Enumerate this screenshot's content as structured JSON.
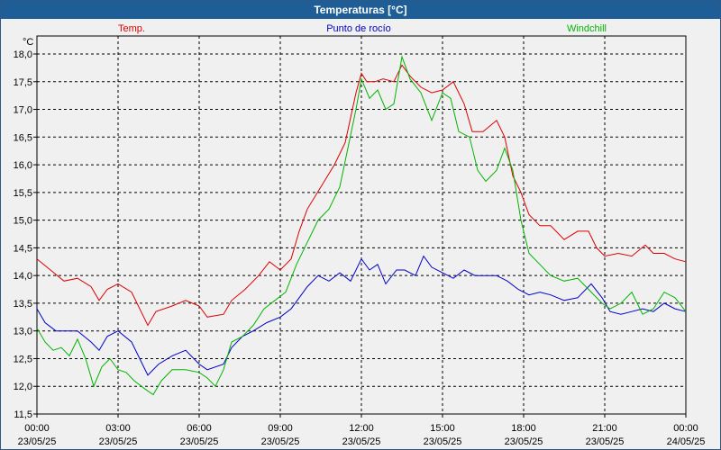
{
  "window": {
    "title": "Temperaturas [°C]"
  },
  "chart_data": {
    "type": "line",
    "title": "Temperaturas [°C]",
    "ylabel": "°C",
    "xlabel": "",
    "ylim": [
      11.5,
      18.0
    ],
    "y_ticks": [
      "18,0",
      "17,5",
      "17,0",
      "16,5",
      "16,0",
      "15,5",
      "15,0",
      "14,5",
      "14,0",
      "13,5",
      "13,0",
      "12,5",
      "12,0",
      "11,5"
    ],
    "x_ticks": [
      {
        "time": "00:00",
        "date": "23/05/25"
      },
      {
        "time": "03:00",
        "date": "23/05/25"
      },
      {
        "time": "06:00",
        "date": "23/05/25"
      },
      {
        "time": "09:00",
        "date": "23/05/25"
      },
      {
        "time": "12:00",
        "date": "23/05/25"
      },
      {
        "time": "15:00",
        "date": "23/05/25"
      },
      {
        "time": "18:00",
        "date": "23/05/25"
      },
      {
        "time": "21:00",
        "date": "23/05/25"
      },
      {
        "time": "00:00",
        "date": "24/05/25"
      }
    ],
    "grid": true,
    "series": [
      {
        "name": "Temp.",
        "color": "#dd0000",
        "points": [
          [
            0,
            14.3
          ],
          [
            0.5,
            14.1
          ],
          [
            1,
            13.9
          ],
          [
            1.5,
            13.95
          ],
          [
            2,
            13.8
          ],
          [
            2.3,
            13.55
          ],
          [
            2.6,
            13.75
          ],
          [
            3,
            13.85
          ],
          [
            3.5,
            13.7
          ],
          [
            3.9,
            13.3
          ],
          [
            4.1,
            13.1
          ],
          [
            4.4,
            13.35
          ],
          [
            5,
            13.45
          ],
          [
            5.5,
            13.55
          ],
          [
            6,
            13.45
          ],
          [
            6.3,
            13.25
          ],
          [
            6.9,
            13.3
          ],
          [
            7.2,
            13.55
          ],
          [
            7.7,
            13.75
          ],
          [
            8.2,
            14.0
          ],
          [
            8.6,
            14.25
          ],
          [
            9,
            14.1
          ],
          [
            9.4,
            14.3
          ],
          [
            9.7,
            14.8
          ],
          [
            10,
            15.2
          ],
          [
            10.5,
            15.6
          ],
          [
            11,
            16.0
          ],
          [
            11.4,
            16.4
          ],
          [
            11.8,
            17.3
          ],
          [
            12,
            17.65
          ],
          [
            12.2,
            17.5
          ],
          [
            12.5,
            17.5
          ],
          [
            12.8,
            17.55
          ],
          [
            13.2,
            17.5
          ],
          [
            13.5,
            17.8
          ],
          [
            13.8,
            17.6
          ],
          [
            14.2,
            17.4
          ],
          [
            14.6,
            17.3
          ],
          [
            15.0,
            17.35
          ],
          [
            15.4,
            17.5
          ],
          [
            15.8,
            17.1
          ],
          [
            16.1,
            16.6
          ],
          [
            16.5,
            16.6
          ],
          [
            17,
            16.8
          ],
          [
            17.3,
            16.5
          ],
          [
            17.6,
            15.8
          ],
          [
            17.9,
            15.5
          ],
          [
            18.2,
            15.1
          ],
          [
            18.6,
            14.9
          ],
          [
            19,
            14.9
          ],
          [
            19.5,
            14.65
          ],
          [
            20,
            14.8
          ],
          [
            20.4,
            14.8
          ],
          [
            20.7,
            14.5
          ],
          [
            21,
            14.35
          ],
          [
            21.5,
            14.4
          ],
          [
            22,
            14.35
          ],
          [
            22.5,
            14.55
          ],
          [
            22.8,
            14.4
          ],
          [
            23.2,
            14.4
          ],
          [
            23.6,
            14.3
          ],
          [
            24,
            14.25
          ]
        ]
      },
      {
        "name": "Punto de rocío",
        "color": "#0000c8",
        "points": [
          [
            0,
            13.4
          ],
          [
            0.3,
            13.15
          ],
          [
            0.7,
            13.0
          ],
          [
            1,
            13.0
          ],
          [
            1.5,
            13.0
          ],
          [
            2,
            12.8
          ],
          [
            2.3,
            12.65
          ],
          [
            2.6,
            12.9
          ],
          [
            3,
            13.0
          ],
          [
            3.5,
            12.8
          ],
          [
            3.9,
            12.4
          ],
          [
            4.1,
            12.2
          ],
          [
            4.5,
            12.4
          ],
          [
            5,
            12.55
          ],
          [
            5.5,
            12.65
          ],
          [
            6,
            12.4
          ],
          [
            6.3,
            12.3
          ],
          [
            6.9,
            12.4
          ],
          [
            7.2,
            12.7
          ],
          [
            7.6,
            12.9
          ],
          [
            8,
            13.0
          ],
          [
            8.5,
            13.15
          ],
          [
            9,
            13.25
          ],
          [
            9.4,
            13.4
          ],
          [
            9.7,
            13.6
          ],
          [
            10,
            13.8
          ],
          [
            10.4,
            14.0
          ],
          [
            10.8,
            13.9
          ],
          [
            11.2,
            14.05
          ],
          [
            11.6,
            13.9
          ],
          [
            12,
            14.3
          ],
          [
            12.3,
            14.1
          ],
          [
            12.6,
            14.2
          ],
          [
            12.9,
            13.85
          ],
          [
            13.3,
            14.1
          ],
          [
            13.6,
            14.1
          ],
          [
            14,
            14.0
          ],
          [
            14.3,
            14.35
          ],
          [
            14.6,
            14.15
          ],
          [
            15,
            14.05
          ],
          [
            15.4,
            13.95
          ],
          [
            15.8,
            14.1
          ],
          [
            16.2,
            14.0
          ],
          [
            16.6,
            14.0
          ],
          [
            17,
            14.0
          ],
          [
            17.4,
            13.9
          ],
          [
            17.8,
            13.75
          ],
          [
            18.2,
            13.65
          ],
          [
            18.6,
            13.7
          ],
          [
            19,
            13.65
          ],
          [
            19.5,
            13.55
          ],
          [
            20,
            13.6
          ],
          [
            20.5,
            13.85
          ],
          [
            20.9,
            13.6
          ],
          [
            21.2,
            13.35
          ],
          [
            21.6,
            13.3
          ],
          [
            22,
            13.35
          ],
          [
            22.4,
            13.4
          ],
          [
            22.8,
            13.35
          ],
          [
            23.2,
            13.5
          ],
          [
            23.6,
            13.4
          ],
          [
            24,
            13.35
          ]
        ]
      },
      {
        "name": "Windchill",
        "color": "#00b400",
        "points": [
          [
            0,
            13.05
          ],
          [
            0.3,
            12.8
          ],
          [
            0.6,
            12.65
          ],
          [
            0.9,
            12.7
          ],
          [
            1.2,
            12.55
          ],
          [
            1.5,
            12.85
          ],
          [
            1.8,
            12.5
          ],
          [
            2.1,
            12.0
          ],
          [
            2.4,
            12.35
          ],
          [
            2.7,
            12.5
          ],
          [
            3,
            12.3
          ],
          [
            3.3,
            12.25
          ],
          [
            3.6,
            12.1
          ],
          [
            4,
            11.95
          ],
          [
            4.3,
            11.85
          ],
          [
            4.6,
            12.1
          ],
          [
            5,
            12.3
          ],
          [
            5.5,
            12.3
          ],
          [
            6,
            12.25
          ],
          [
            6.3,
            12.15
          ],
          [
            6.6,
            12.0
          ],
          [
            6.9,
            12.3
          ],
          [
            7.2,
            12.8
          ],
          [
            7.6,
            12.9
          ],
          [
            8,
            13.1
          ],
          [
            8.4,
            13.4
          ],
          [
            8.8,
            13.55
          ],
          [
            9.2,
            13.7
          ],
          [
            9.6,
            14.2
          ],
          [
            10,
            14.6
          ],
          [
            10.4,
            15.0
          ],
          [
            10.8,
            15.2
          ],
          [
            11.2,
            15.6
          ],
          [
            11.5,
            16.3
          ],
          [
            11.8,
            17.0
          ],
          [
            12,
            17.55
          ],
          [
            12.3,
            17.2
          ],
          [
            12.6,
            17.35
          ],
          [
            12.9,
            17.0
          ],
          [
            13.2,
            17.1
          ],
          [
            13.5,
            17.95
          ],
          [
            13.8,
            17.55
          ],
          [
            14.2,
            17.3
          ],
          [
            14.6,
            16.8
          ],
          [
            15,
            17.3
          ],
          [
            15.3,
            17.2
          ],
          [
            15.6,
            16.6
          ],
          [
            16,
            16.5
          ],
          [
            16.3,
            15.9
          ],
          [
            16.6,
            15.7
          ],
          [
            17,
            15.9
          ],
          [
            17.3,
            16.3
          ],
          [
            17.6,
            15.9
          ],
          [
            17.9,
            15.0
          ],
          [
            18.2,
            14.4
          ],
          [
            18.6,
            14.2
          ],
          [
            19,
            14.0
          ],
          [
            19.5,
            13.9
          ],
          [
            20,
            13.95
          ],
          [
            20.5,
            13.7
          ],
          [
            20.9,
            13.5
          ],
          [
            21.2,
            13.4
          ],
          [
            21.6,
            13.5
          ],
          [
            22,
            13.7
          ],
          [
            22.4,
            13.3
          ],
          [
            22.8,
            13.4
          ],
          [
            23.2,
            13.7
          ],
          [
            23.6,
            13.6
          ],
          [
            24,
            13.35
          ]
        ]
      }
    ]
  }
}
